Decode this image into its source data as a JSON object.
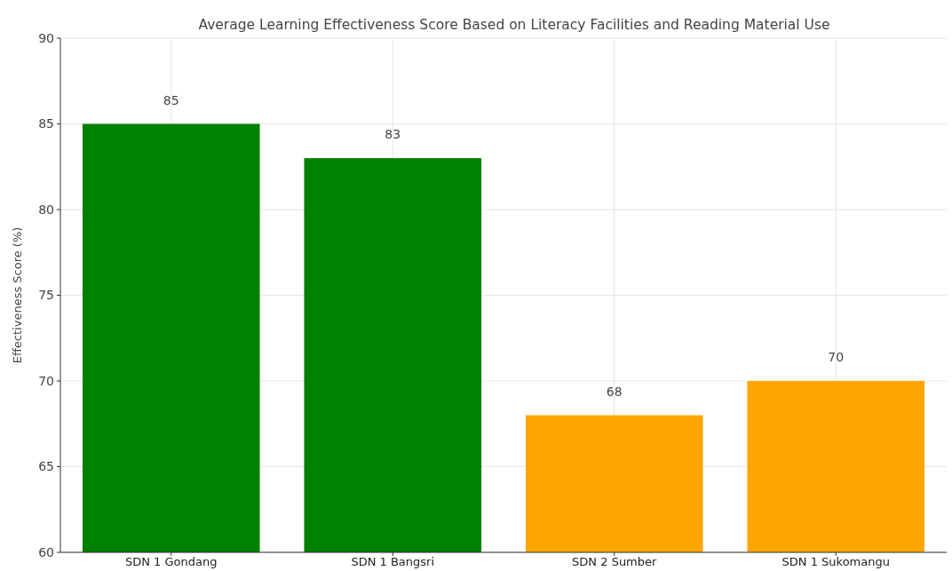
{
  "chart_data": {
    "type": "bar",
    "title": "Average Learning Effectiveness Score Based on Literacy Facilities and Reading Material Use",
    "ylabel": "Effectiveness Score (%)",
    "categories": [
      "SDN 1 Gondang",
      "SDN 1 Bangsri",
      "SDN 2 Sumber",
      "SDN 1 Sukomangu"
    ],
    "values": [
      85,
      83,
      68,
      70
    ],
    "colors": [
      "#008000",
      "#008000",
      "#ffa500",
      "#ffa500"
    ],
    "ylim": [
      60,
      90
    ],
    "yticks": [
      60,
      65,
      70,
      75,
      80,
      85,
      90
    ],
    "grid": true,
    "data_labels": true
  }
}
